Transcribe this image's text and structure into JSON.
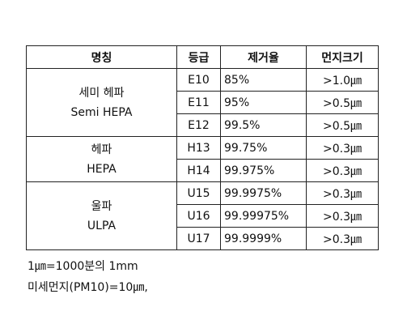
{
  "table": {
    "header": [
      "명칭",
      "등급",
      "제거율",
      "먼지크기"
    ],
    "groups": [
      {
        "name": [
          "세미 헤파",
          "Semi HEPA"
        ],
        "rows": [
          [
            "E10",
            "85%",
            ">1.0㎛"
          ],
          [
            "E11",
            "95%",
            ">0.5㎛"
          ],
          [
            "E12",
            "99.5%",
            ">0.5㎛"
          ]
        ]
      },
      {
        "name": [
          "헤파",
          "HEPA"
        ],
        "rows": [
          [
            "H13",
            "99.75%",
            ">0.3㎛"
          ],
          [
            "H14",
            "99.975%",
            ">0.3㎛"
          ]
        ]
      },
      {
        "name": [
          "울파",
          "ULPA"
        ],
        "rows": [
          [
            "U15",
            "99.9975%",
            ">0.3㎛"
          ],
          [
            "U16",
            "99.99975%",
            ">0.3㎛"
          ],
          [
            "U17",
            "99.9999%",
            ">0.3㎛"
          ]
        ]
      }
    ]
  },
  "notes": [
    "1㎛=1000분의 1mm",
    "미세먼지(PM10)=10㎛,"
  ]
}
